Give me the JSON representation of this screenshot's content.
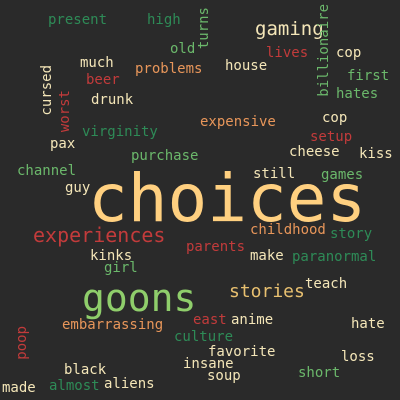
{
  "word_cloud": {
    "background_color": "#2a2a2a",
    "palette": {
      "green": "#6bb86b",
      "dark_green": "#2e8b57",
      "orange": "#e8965a",
      "yellow": "#ffd080",
      "cream": "#f4e6b8",
      "red": "#c23b3b",
      "teal": "#4aa078"
    },
    "words": {
      "choices": "choices",
      "goons": "goons",
      "experiences": "experiences",
      "gaming": "gaming",
      "stories": "stories",
      "present": "present",
      "high": "high",
      "turns": "turns",
      "billionaire": "billionaire",
      "old": "old",
      "lives": "lives",
      "cop": "cop",
      "much": "much",
      "house": "house",
      "problems": "problems",
      "first": "first",
      "cursed": "cursed",
      "beer": "beer",
      "hates": "hates",
      "worst": "worst",
      "drunk": "drunk",
      "expensive": "expensive",
      "virginity": "virginity",
      "setup": "setup",
      "pax": "pax",
      "cheese": "cheese",
      "kiss": "kiss",
      "purchase": "purchase",
      "channel": "channel",
      "still": "still",
      "games": "games",
      "guy": "guy",
      "childhood": "childhood",
      "story": "story",
      "parents": "parents",
      "kinks": "kinks",
      "make": "make",
      "paranormal": "paranormal",
      "girl": "girl",
      "teach": "teach",
      "east": "east",
      "anime": "anime",
      "hate": "hate",
      "embarrassing": "embarrassing",
      "culture": "culture",
      "poop": "poop",
      "favorite": "favorite",
      "black": "black",
      "insane": "insane",
      "loss": "loss",
      "soup": "soup",
      "short": "short",
      "made": "made",
      "almost": "almost",
      "aliens": "aliens"
    }
  }
}
